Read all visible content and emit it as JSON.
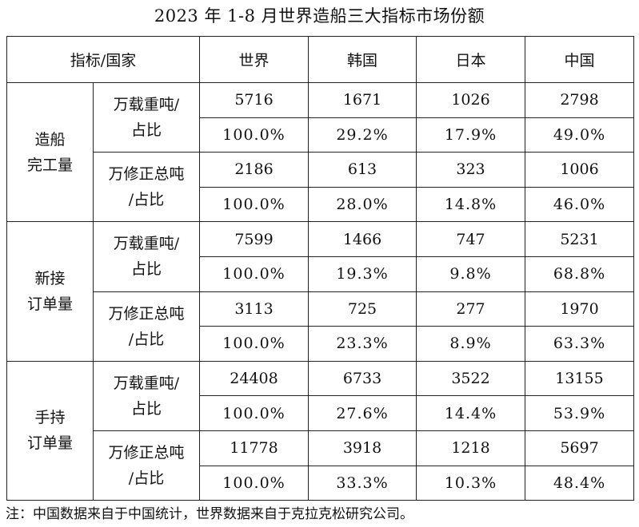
{
  "title": "2023 年 1-8 月世界造船三大指标市场份额",
  "header": {
    "corner": "指标/国家",
    "columns": [
      "世界",
      "韩国",
      "日本",
      "中国"
    ]
  },
  "groups": [
    {
      "label_lines": [
        "造船",
        "完工量"
      ],
      "subs": [
        {
          "label_lines": [
            "万载重吨/",
            "占比"
          ],
          "values": [
            "5716",
            "1671",
            "1026",
            "2798"
          ],
          "shares": [
            "100.0%",
            "29.2%",
            "17.9%",
            "49.0%"
          ]
        },
        {
          "label_lines": [
            "万修正总吨",
            "/占比"
          ],
          "values": [
            "2186",
            "613",
            "323",
            "1006"
          ],
          "shares": [
            "100.0%",
            "28.0%",
            "14.8%",
            "46.0%"
          ]
        }
      ]
    },
    {
      "label_lines": [
        "新接",
        "订单量"
      ],
      "subs": [
        {
          "label_lines": [
            "万载重吨/",
            "占比"
          ],
          "values": [
            "7599",
            "1466",
            "747",
            "5231"
          ],
          "shares": [
            "100.0%",
            "19.3%",
            "9.8%",
            "68.8%"
          ]
        },
        {
          "label_lines": [
            "万修正总吨",
            "/占比"
          ],
          "values": [
            "3113",
            "725",
            "277",
            "1970"
          ],
          "shares": [
            "100.0%",
            "23.3%",
            "8.9%",
            "63.3%"
          ]
        }
      ]
    },
    {
      "label_lines": [
        "手持",
        "订单量"
      ],
      "subs": [
        {
          "label_lines": [
            "万载重吨/",
            "占比"
          ],
          "values": [
            "24408",
            "6733",
            "3522",
            "13155"
          ],
          "shares": [
            "100.0%",
            "27.6%",
            "14.4%",
            "53.9%"
          ]
        },
        {
          "label_lines": [
            "万修正总吨",
            "/占比"
          ],
          "values": [
            "11778",
            "3918",
            "1218",
            "5697"
          ],
          "shares": [
            "100.0%",
            "33.3%",
            "10.3%",
            "48.4%"
          ]
        }
      ]
    }
  ],
  "note": "注：中国数据来自于中国统计，世界数据来自于克拉克松研究公司。"
}
